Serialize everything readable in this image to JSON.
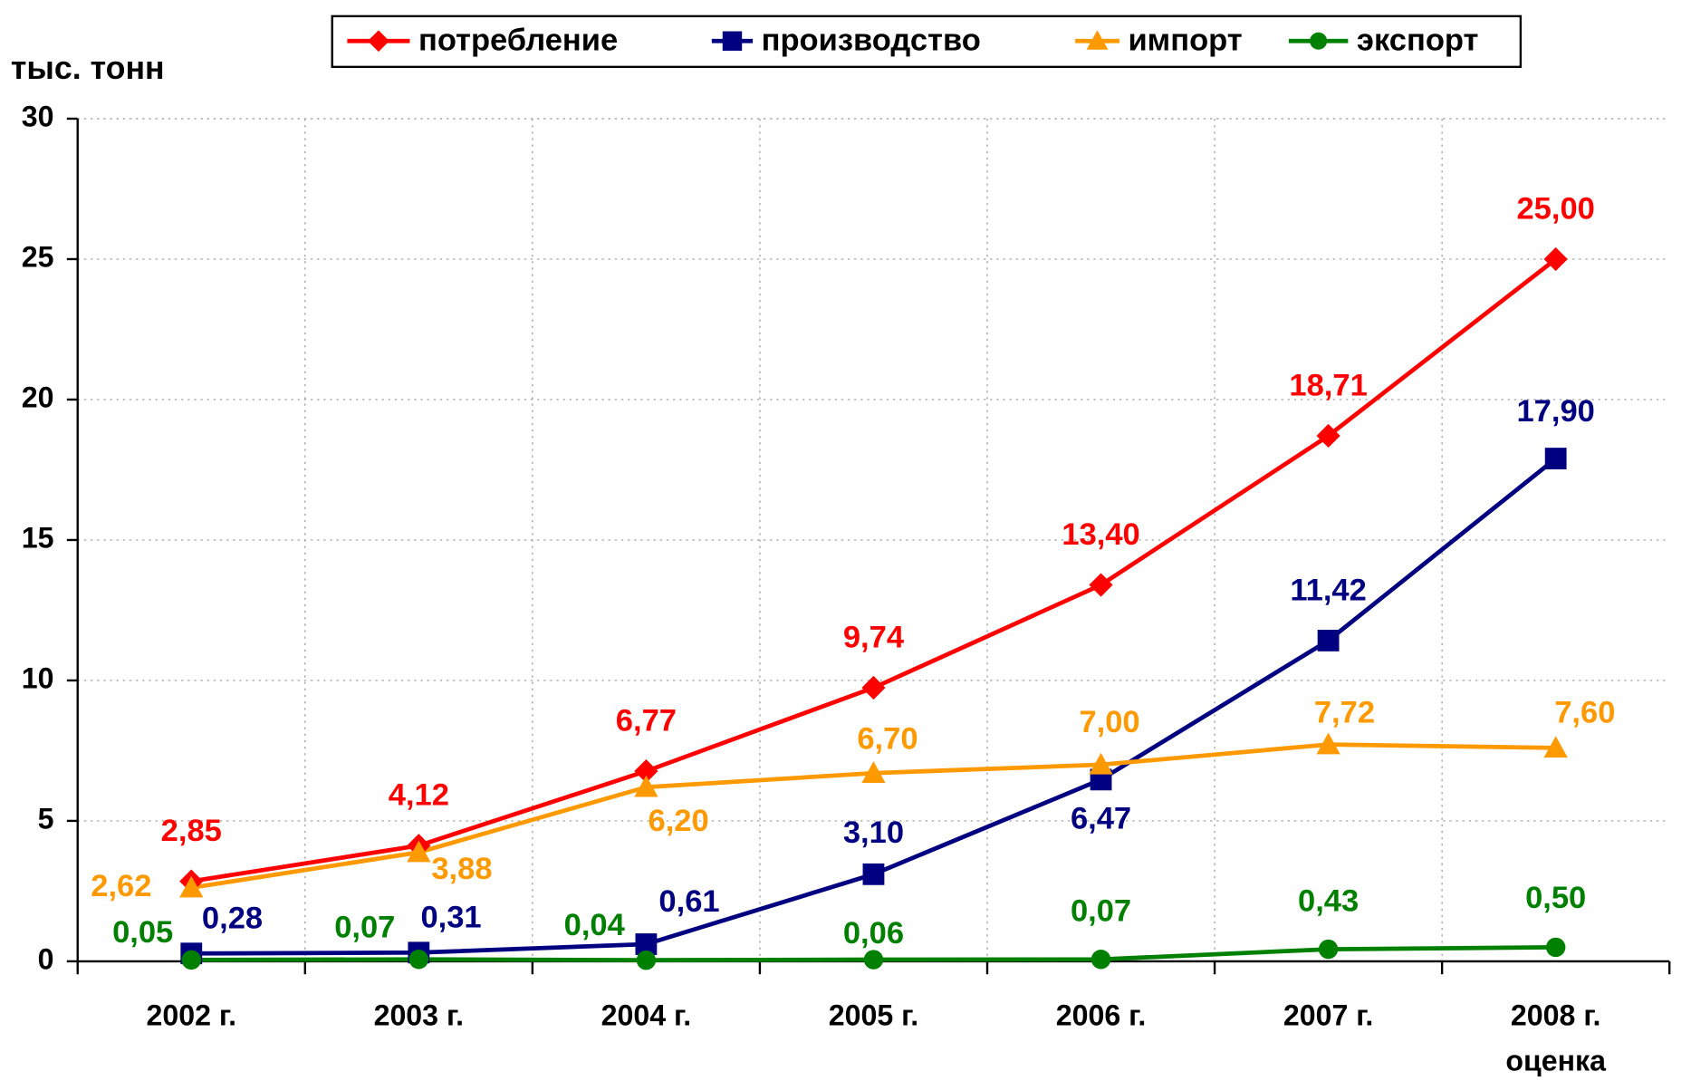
{
  "chart_data": {
    "type": "line",
    "y_label": "тыс. тонн",
    "categories": [
      "2002 г.",
      "2003 г.",
      "2004 г.",
      "2005 г.",
      "2006 г.",
      "2007 г.",
      "2008 г."
    ],
    "category_note": "оценка",
    "ylim": [
      0,
      30
    ],
    "yticks": [
      0,
      5,
      10,
      15,
      20,
      25,
      30
    ],
    "grid": true,
    "legend": "top",
    "series": [
      {
        "name": "потребление",
        "color": "#ff0000",
        "marker": "diamond",
        "values": [
          2.85,
          4.12,
          6.77,
          9.74,
          13.4,
          18.71,
          25.0
        ],
        "value_labels": [
          "2,85",
          "4,12",
          "6,77",
          "9,74",
          "13,40",
          "18,71",
          "25,00"
        ]
      },
      {
        "name": "производство",
        "color": "#000080",
        "marker": "square",
        "values": [
          0.28,
          0.31,
          0.61,
          3.1,
          6.47,
          11.42,
          17.9
        ],
        "value_labels": [
          "0,28",
          "0,31",
          "0,61",
          "3,10",
          "6,47",
          "11,42",
          "17,90"
        ]
      },
      {
        "name": "импорт",
        "color": "#ff9900",
        "marker": "triangle",
        "values": [
          2.62,
          3.88,
          6.2,
          6.7,
          7.0,
          7.72,
          7.6
        ],
        "value_labels": [
          "2,62",
          "3,88",
          "6,20",
          "6,70",
          "7,00",
          "7,72",
          "7,60"
        ]
      },
      {
        "name": "экспорт",
        "color": "#008000",
        "marker": "circle",
        "values": [
          0.05,
          0.07,
          0.04,
          0.06,
          0.07,
          0.43,
          0.5
        ],
        "value_labels": [
          "0,05",
          "0,07",
          "0,04",
          "0,06",
          "0,07",
          "0,43",
          "0,50"
        ]
      }
    ]
  }
}
